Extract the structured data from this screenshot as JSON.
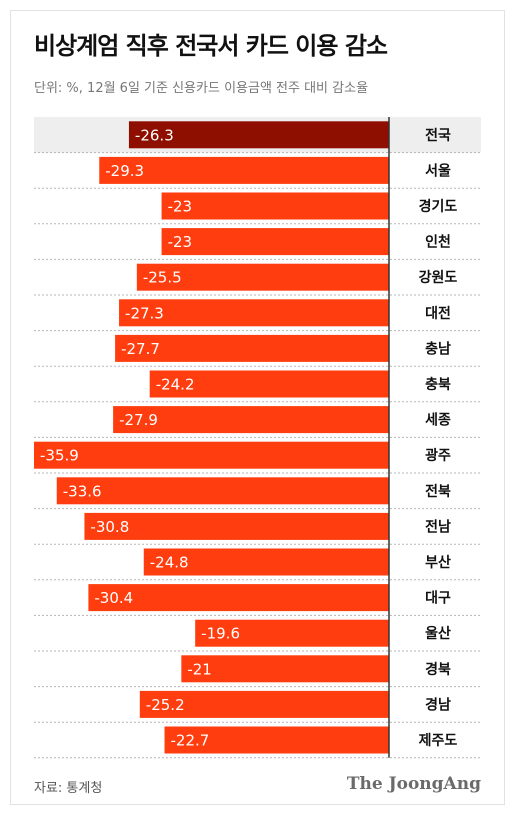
{
  "title": "비상계엄 직후 전국서 카드 이용 감소",
  "subtitle": "단위: %, 12월 6일 기준 신용카드 이용금액 전주 대비 감소율",
  "source": "자료: 통계청",
  "logo": "The JoongAng",
  "colors": {
    "highlight_bar": "#8e0e00",
    "bar": "#ff3d0f",
    "highlight_row_bg": "#eeeeee",
    "divider": "#b5b5b5",
    "axis": "#333333"
  },
  "chart_data": {
    "type": "bar",
    "orientation": "horizontal",
    "categories": [
      "전국",
      "서울",
      "경기도",
      "인천",
      "강원도",
      "대전",
      "충남",
      "충북",
      "세종",
      "광주",
      "전북",
      "전남",
      "부산",
      "대구",
      "울산",
      "경북",
      "경남",
      "제주도"
    ],
    "values": [
      -26.3,
      -29.3,
      -23,
      -23,
      -25.5,
      -27.3,
      -27.7,
      -24.2,
      -27.9,
      -35.9,
      -33.6,
      -30.8,
      -24.8,
      -30.4,
      -19.6,
      -21,
      -25.2,
      -22.7
    ],
    "value_labels": [
      "-26.3",
      "-29.3",
      "-23",
      "-23",
      "-25.5",
      "-27.3",
      "-27.7",
      "-24.2",
      "-27.9",
      "-35.9",
      "-33.6",
      "-30.8",
      "-24.8",
      "-30.4",
      "-19.6",
      "-21",
      "-25.2",
      "-22.7"
    ],
    "highlight": "전국",
    "xlim": [
      -35.9,
      0
    ],
    "grid": false,
    "legend": "none"
  }
}
